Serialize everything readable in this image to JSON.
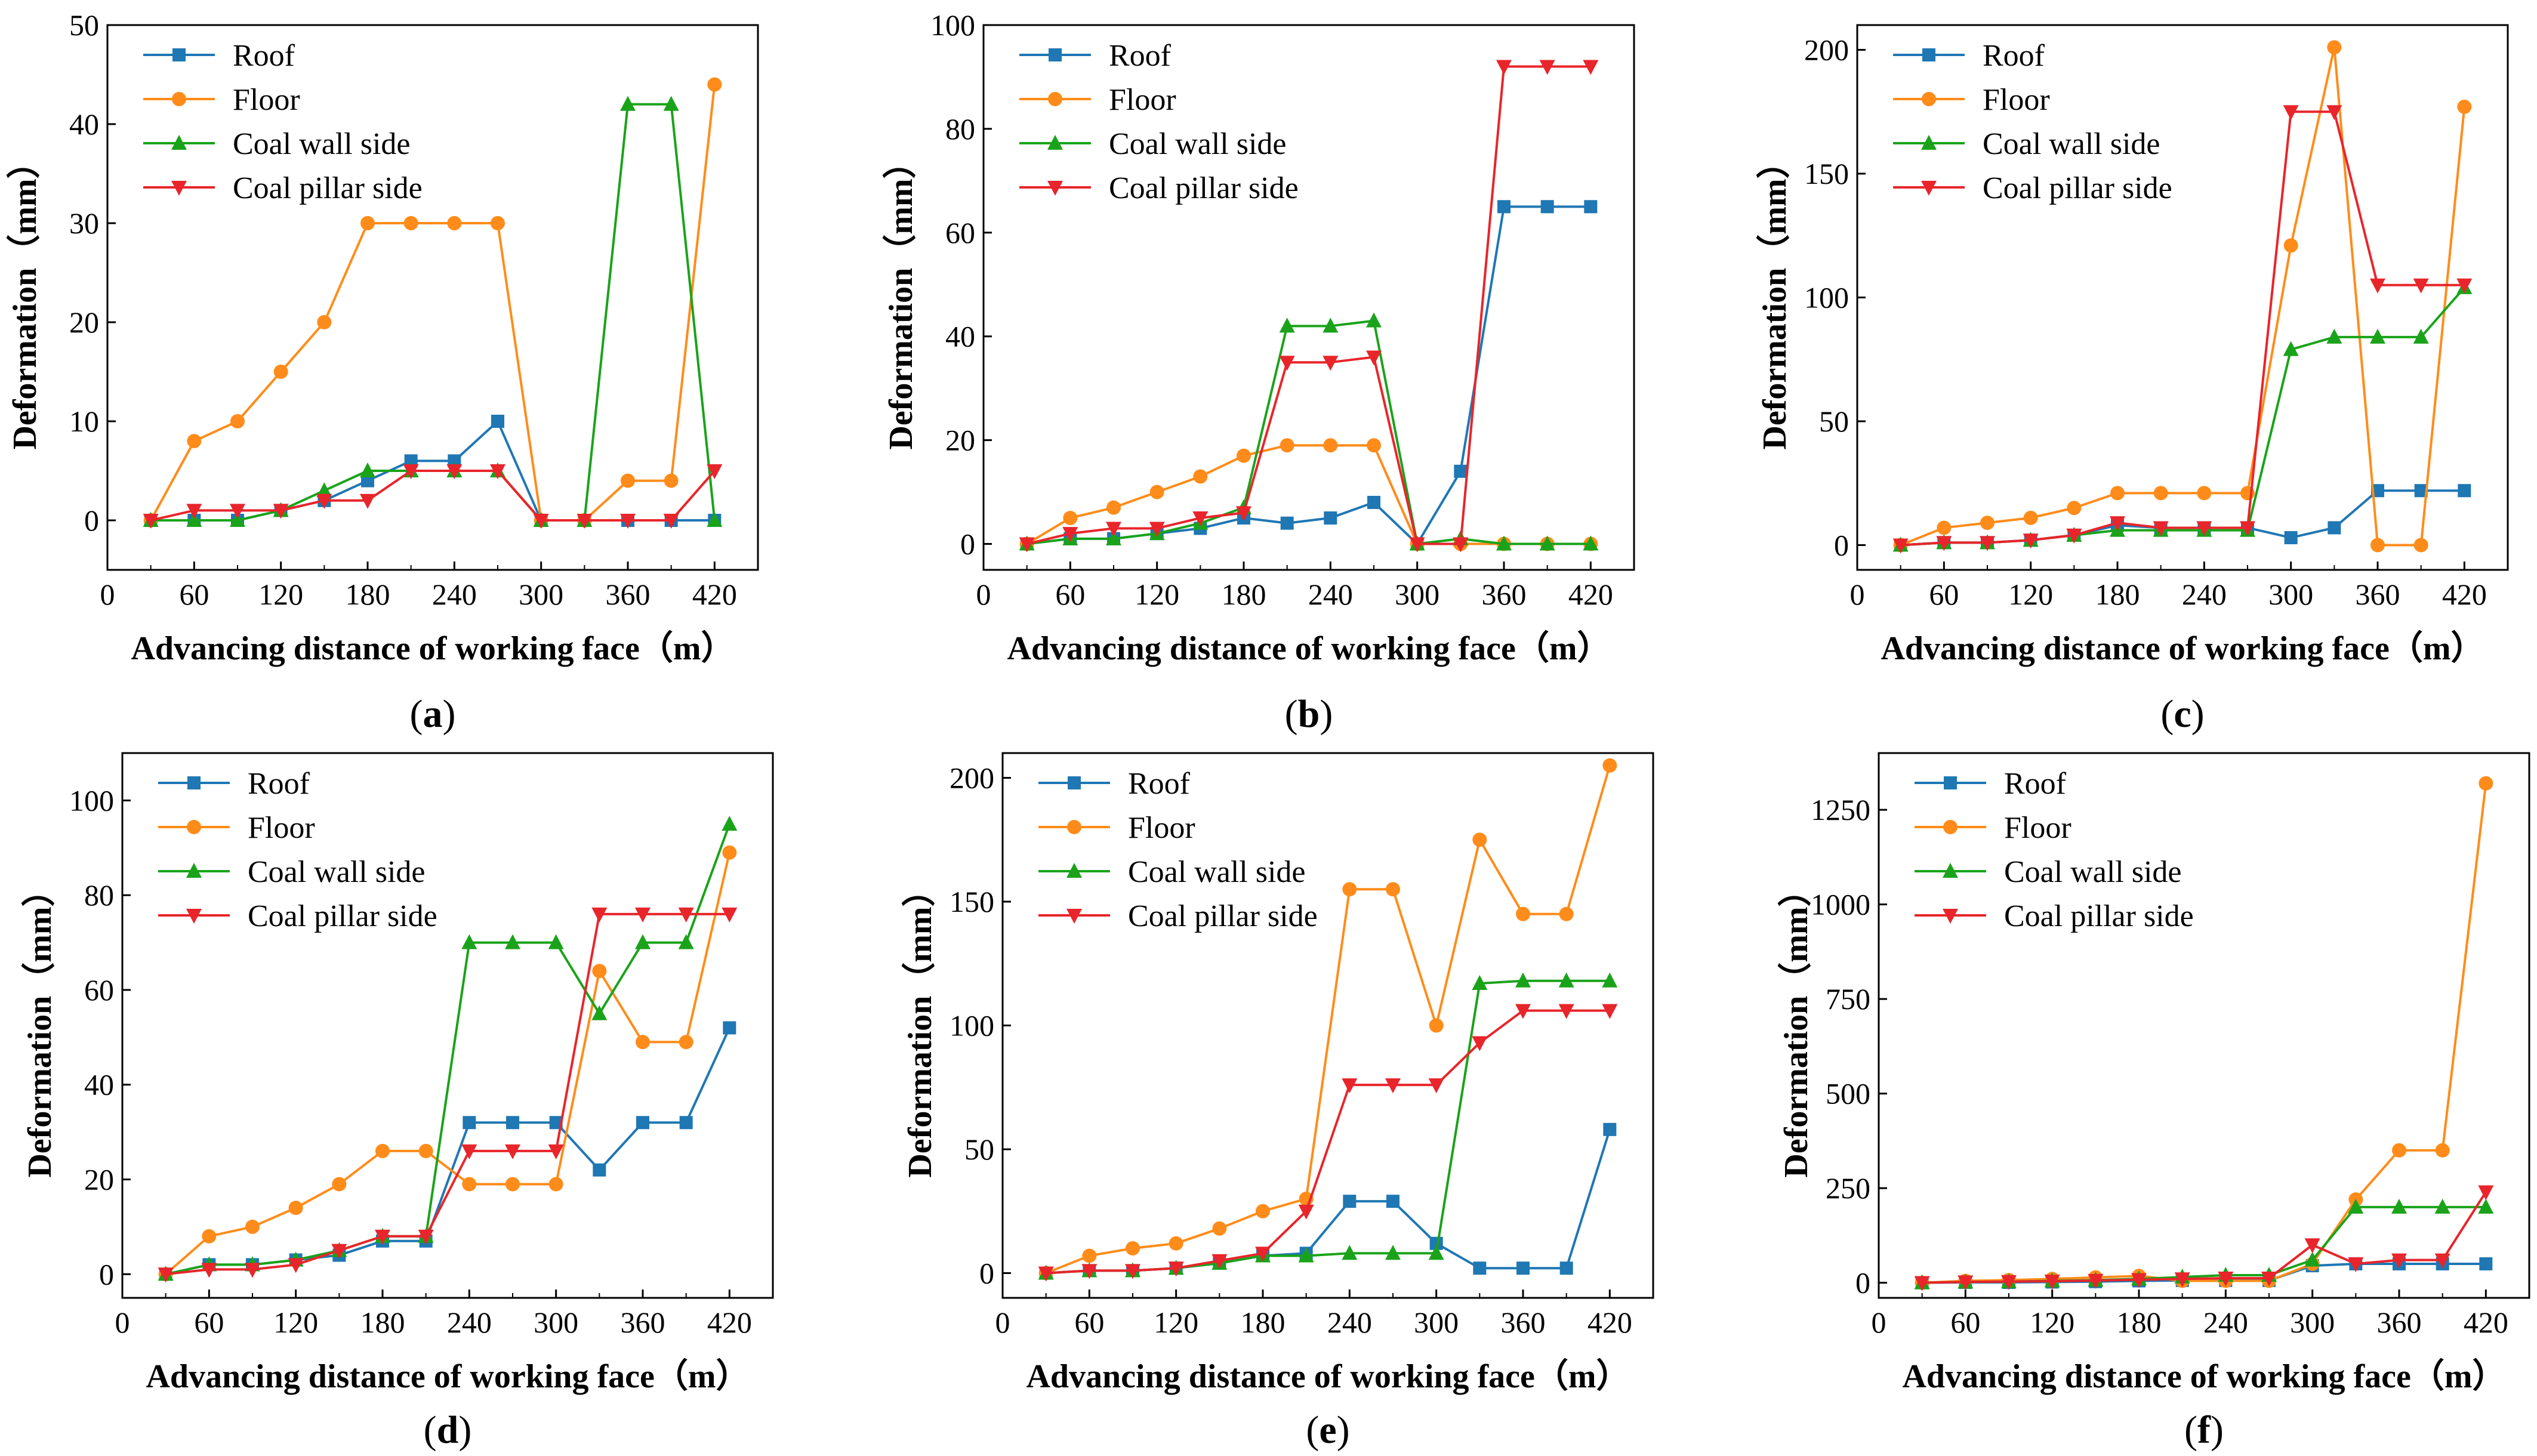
{
  "figure": {
    "colors": {
      "Roof": "#1f77b4",
      "Floor": "#ff8c1a",
      "Coal wall side": "#1aa31a",
      "Coal pillar side": "#e8252b"
    },
    "markers": {
      "Roof": "square",
      "Floor": "circle",
      "Coal wall side": "triangle-up",
      "Coal pillar side": "triangle-down"
    }
  },
  "chart_data": [
    {
      "type": "line",
      "panel": "a",
      "panel_label": "a",
      "xlabel": "Advancing distance of working face（m）",
      "ylabel": "Deformation（mm）",
      "xlim": [
        0,
        450
      ],
      "ylim": [
        -5,
        50
      ],
      "xticks": [
        0,
        60,
        120,
        180,
        240,
        300,
        360,
        420
      ],
      "yticks": [
        0,
        10,
        20,
        30,
        40,
        50
      ],
      "legend_position": "top-left",
      "x": [
        30,
        60,
        90,
        120,
        150,
        180,
        210,
        240,
        270,
        300,
        330,
        360,
        390,
        420
      ],
      "series": [
        {
          "name": "Roof",
          "values": [
            0,
            0,
            0,
            1,
            2,
            4,
            6,
            6,
            10,
            0,
            0,
            0,
            0,
            0
          ]
        },
        {
          "name": "Floor",
          "values": [
            0,
            8,
            10,
            15,
            20,
            30,
            30,
            30,
            30,
            0,
            0,
            4,
            4,
            44
          ]
        },
        {
          "name": "Coal wall side",
          "values": [
            0,
            0,
            0,
            1,
            3,
            5,
            5,
            5,
            5,
            0,
            0,
            42,
            42,
            0
          ]
        },
        {
          "name": "Coal pillar side",
          "values": [
            0,
            1,
            1,
            1,
            2,
            2,
            5,
            5,
            5,
            0,
            0,
            0,
            0,
            5
          ]
        }
      ]
    },
    {
      "type": "line",
      "panel": "b",
      "panel_label": "b",
      "xlabel": "Advancing distance of working face（m）",
      "ylabel": "Deformation（mm）",
      "xlim": [
        0,
        450
      ],
      "ylim": [
        -5,
        100
      ],
      "xticks": [
        0,
        60,
        120,
        180,
        240,
        300,
        360,
        420
      ],
      "yticks": [
        0,
        20,
        40,
        60,
        80,
        100
      ],
      "legend_position": "top-left",
      "x": [
        30,
        60,
        90,
        120,
        150,
        180,
        210,
        240,
        270,
        300,
        330,
        360,
        390,
        420
      ],
      "series": [
        {
          "name": "Roof",
          "values": [
            0,
            1,
            1,
            2,
            3,
            5,
            4,
            5,
            8,
            0,
            14,
            65,
            65,
            65
          ]
        },
        {
          "name": "Floor",
          "values": [
            0,
            5,
            7,
            10,
            13,
            17,
            19,
            19,
            19,
            0,
            0,
            0,
            0,
            0
          ]
        },
        {
          "name": "Coal wall side",
          "values": [
            0,
            1,
            1,
            2,
            4,
            7,
            42,
            42,
            43,
            0,
            1,
            0,
            0,
            0
          ]
        },
        {
          "name": "Coal pillar side",
          "values": [
            0,
            2,
            3,
            3,
            5,
            6,
            35,
            35,
            36,
            0,
            0,
            92,
            92,
            92
          ]
        }
      ]
    },
    {
      "type": "line",
      "panel": "c",
      "panel_label": "c",
      "xlabel": "Advancing distance of working face（m）",
      "ylabel": "Deformation（mm）",
      "xlim": [
        0,
        450
      ],
      "ylim": [
        -10,
        210
      ],
      "xticks": [
        0,
        60,
        120,
        180,
        240,
        300,
        360,
        420
      ],
      "yticks": [
        0,
        50,
        100,
        150,
        200
      ],
      "legend_position": "top-left",
      "x": [
        30,
        60,
        90,
        120,
        150,
        180,
        210,
        240,
        270,
        300,
        330,
        360,
        390,
        420
      ],
      "series": [
        {
          "name": "Roof",
          "values": [
            0,
            1,
            1,
            2,
            4,
            8,
            7,
            7,
            7,
            3,
            7,
            22,
            22,
            22
          ]
        },
        {
          "name": "Floor",
          "values": [
            0,
            7,
            9,
            11,
            15,
            21,
            21,
            21,
            21,
            121,
            201,
            0,
            0,
            177
          ]
        },
        {
          "name": "Coal wall side",
          "values": [
            0,
            1,
            1,
            2,
            4,
            6,
            6,
            6,
            6,
            79,
            84,
            84,
            84,
            104
          ]
        },
        {
          "name": "Coal pillar side",
          "values": [
            0,
            1,
            1,
            2,
            4,
            9,
            7,
            7,
            7,
            175,
            175,
            105,
            105,
            105
          ]
        }
      ]
    },
    {
      "type": "line",
      "panel": "d",
      "panel_label": "d",
      "xlabel": "Advancing distance of working face（m）",
      "ylabel": "Deformation（mm）",
      "xlim": [
        0,
        450
      ],
      "ylim": [
        -5,
        110
      ],
      "xticks": [
        0,
        60,
        120,
        180,
        240,
        300,
        360,
        420
      ],
      "yticks": [
        0,
        20,
        40,
        60,
        80,
        100
      ],
      "legend_position": "top-left",
      "x": [
        30,
        60,
        90,
        120,
        150,
        180,
        210,
        240,
        270,
        300,
        330,
        360,
        390,
        420
      ],
      "series": [
        {
          "name": "Roof",
          "values": [
            0,
            2,
            2,
            3,
            4,
            7,
            7,
            32,
            32,
            32,
            22,
            32,
            32,
            52
          ]
        },
        {
          "name": "Floor",
          "values": [
            0,
            8,
            10,
            14,
            19,
            26,
            26,
            19,
            19,
            19,
            64,
            49,
            49,
            89
          ]
        },
        {
          "name": "Coal wall side",
          "values": [
            0,
            2,
            2,
            3,
            5,
            8,
            8,
            70,
            70,
            70,
            55,
            70,
            70,
            95
          ]
        },
        {
          "name": "Coal pillar side",
          "values": [
            0,
            1,
            1,
            2,
            5,
            8,
            8,
            26,
            26,
            26,
            76,
            76,
            76,
            76
          ]
        }
      ]
    },
    {
      "type": "line",
      "panel": "e",
      "panel_label": "e",
      "xlabel": "Advancing distance of working face（m）",
      "ylabel": "Deformation（mm）",
      "xlim": [
        0,
        450
      ],
      "ylim": [
        -10,
        210
      ],
      "xticks": [
        0,
        60,
        120,
        180,
        240,
        300,
        360,
        420
      ],
      "yticks": [
        0,
        50,
        100,
        150,
        200
      ],
      "legend_position": "top-left",
      "x": [
        30,
        60,
        90,
        120,
        150,
        180,
        210,
        240,
        270,
        300,
        330,
        360,
        390,
        420
      ],
      "series": [
        {
          "name": "Roof",
          "values": [
            0,
            1,
            1,
            2,
            4,
            7,
            8,
            29,
            29,
            12,
            2,
            2,
            2,
            58
          ]
        },
        {
          "name": "Floor",
          "values": [
            0,
            7,
            10,
            12,
            18,
            25,
            30,
            155,
            155,
            100,
            175,
            145,
            145,
            205
          ]
        },
        {
          "name": "Coal wall side",
          "values": [
            0,
            1,
            1,
            2,
            4,
            7,
            7,
            8,
            8,
            8,
            117,
            118,
            118,
            118
          ]
        },
        {
          "name": "Coal pillar side",
          "values": [
            0,
            1,
            1,
            2,
            5,
            8,
            25,
            76,
            76,
            76,
            93,
            106,
            106,
            106
          ]
        }
      ]
    },
    {
      "type": "line",
      "panel": "f",
      "panel_label": "f",
      "xlabel": "Advancing distance of working face（m）",
      "ylabel": "Deformation（mm）",
      "xlim": [
        0,
        450
      ],
      "ylim": [
        -40,
        1400
      ],
      "xticks": [
        0,
        60,
        120,
        180,
        240,
        300,
        360,
        420
      ],
      "yticks": [
        0,
        250,
        500,
        750,
        1000,
        1250
      ],
      "legend_position": "top-left",
      "x": [
        30,
        60,
        90,
        120,
        150,
        180,
        210,
        240,
        270,
        300,
        330,
        360,
        390,
        420
      ],
      "series": [
        {
          "name": "Roof",
          "values": [
            0,
            1,
            1,
            2,
            3,
            5,
            6,
            6,
            6,
            45,
            50,
            50,
            50,
            50
          ]
        },
        {
          "name": "Floor",
          "values": [
            0,
            5,
            7,
            10,
            14,
            18,
            5,
            5,
            5,
            50,
            220,
            350,
            350,
            1320
          ]
        },
        {
          "name": "Coal wall side",
          "values": [
            0,
            2,
            3,
            5,
            7,
            10,
            15,
            20,
            20,
            60,
            200,
            200,
            200,
            200
          ]
        },
        {
          "name": "Coal pillar side",
          "values": [
            0,
            2,
            3,
            4,
            6,
            8,
            10,
            12,
            12,
            100,
            50,
            60,
            60,
            240
          ]
        }
      ]
    }
  ]
}
